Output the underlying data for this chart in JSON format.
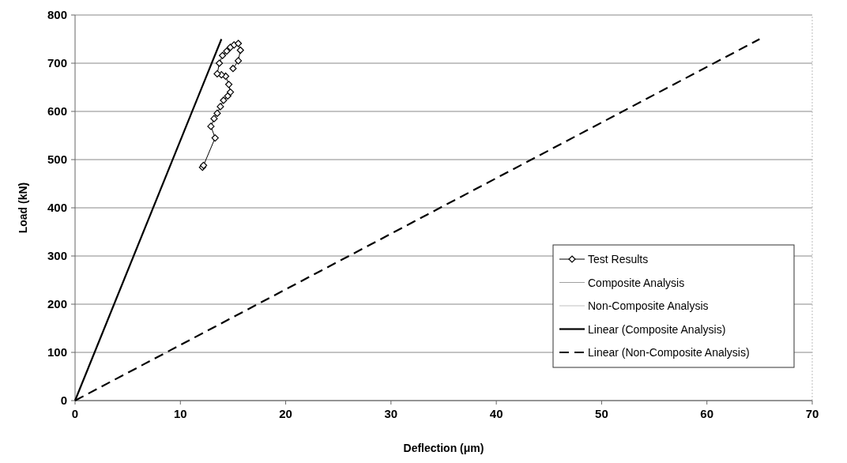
{
  "chart_data": {
    "type": "line",
    "xlabel": "Deflection (μm)",
    "ylabel": "Load (kN)",
    "xlim": [
      0,
      70
    ],
    "ylim": [
      0,
      800
    ],
    "xticks": [
      0,
      10,
      20,
      30,
      40,
      50,
      60,
      70
    ],
    "yticks": [
      0,
      100,
      200,
      300,
      400,
      500,
      600,
      700,
      800
    ],
    "grid": "y",
    "legend": "right",
    "series": [
      {
        "name": "Test Results",
        "marker": "diamond",
        "color": "#000000",
        "x": [
          12.1,
          12.2,
          13.3,
          12.9,
          13.2,
          13.5,
          13.8,
          14.1,
          14.5,
          14.75,
          14.6,
          14.3,
          13.9,
          13.5,
          13.7,
          14.0,
          14.4,
          14.75,
          15.1,
          15.5,
          15.7,
          15.5,
          15.0
        ],
        "values": [
          484,
          488,
          545,
          569,
          585,
          596,
          610,
          623,
          632,
          640,
          656,
          673,
          676,
          678,
          700,
          716,
          725,
          733,
          738,
          741,
          727,
          705,
          689
        ]
      },
      {
        "name": "Composite Analysis",
        "marker": "none",
        "color": "#a0a0a0"
      },
      {
        "name": "Non-Composite Analysis",
        "marker": "none",
        "color": "#c0c0c0"
      },
      {
        "name": "Linear (Composite Analysis)",
        "marker": "none",
        "line_style": "solid",
        "color": "#000000",
        "x": [
          0,
          13.9
        ],
        "values": [
          0,
          750
        ]
      },
      {
        "name": "Linear (Non-Composite Analysis)",
        "marker": "none",
        "line_style": "dashed",
        "color": "#000000",
        "x": [
          0,
          65
        ],
        "values": [
          0,
          750
        ]
      }
    ]
  }
}
